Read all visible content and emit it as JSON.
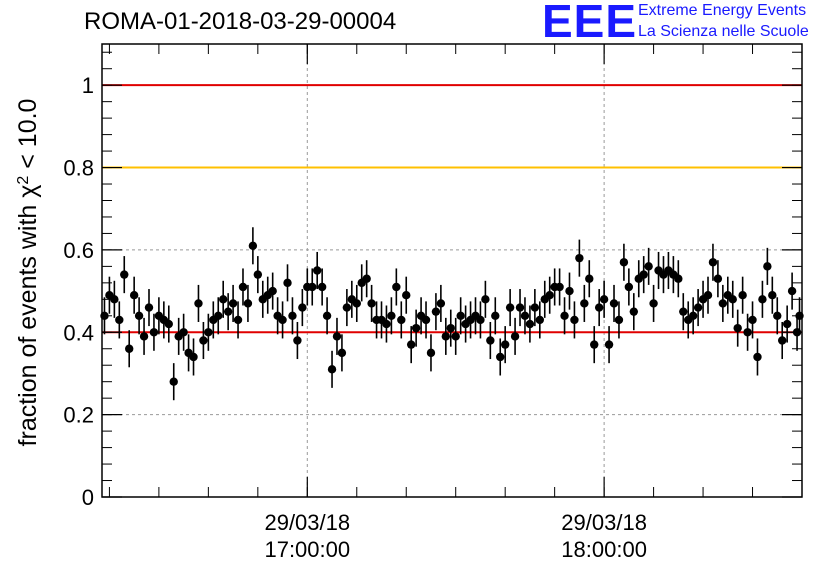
{
  "title": "ROMA-01-2018-03-29-00004",
  "logo": {
    "mark": "EEE",
    "line1": "Extreme Energy Events",
    "line2": "La Scienza nelle Scuole",
    "color": "#1a1aff"
  },
  "chart_data": {
    "type": "scatter",
    "title": "ROMA-01-2018-03-29-00004",
    "xlabel": "",
    "ylabel_prefix": "fraction of events with ",
    "ylabel_symbol": "χ",
    "ylabel_sup": "2",
    "ylabel_suffix": " < 10.0",
    "ylim": [
      0,
      1.1
    ],
    "yticks": [
      0,
      0.2,
      0.4,
      0.6,
      0.8,
      1
    ],
    "ytick_labels": [
      "0",
      "0.2",
      "0.4",
      "0.6",
      "0.8",
      "1"
    ],
    "xlim": [
      "16:18:30",
      "18:40:00"
    ],
    "xticks": [
      {
        "time": "17:00:00",
        "label_date": "29/03/18",
        "label_time": "17:00:00"
      },
      {
        "time": "18:00:00",
        "label_date": "29/03/18",
        "label_time": "18:00:00"
      }
    ],
    "grid": true,
    "reference_lines": [
      {
        "y": 1.0,
        "color": "#e00000"
      },
      {
        "y": 0.8,
        "color": "#ffc000"
      },
      {
        "y": 0.4,
        "color": "#e00000"
      }
    ],
    "series": [
      {
        "marker_color": "#000000",
        "error": 0.045,
        "points": [
          {
            "t": "16:19:00",
            "y": 0.44
          },
          {
            "t": "16:20:00",
            "y": 0.49
          },
          {
            "t": "16:21:00",
            "y": 0.48
          },
          {
            "t": "16:22:00",
            "y": 0.43
          },
          {
            "t": "16:23:00",
            "y": 0.54
          },
          {
            "t": "16:24:00",
            "y": 0.36
          },
          {
            "t": "16:25:00",
            "y": 0.49
          },
          {
            "t": "16:26:00",
            "y": 0.44
          },
          {
            "t": "16:27:00",
            "y": 0.39
          },
          {
            "t": "16:28:00",
            "y": 0.46
          },
          {
            "t": "16:29:00",
            "y": 0.4
          },
          {
            "t": "16:30:00",
            "y": 0.44
          },
          {
            "t": "16:31:00",
            "y": 0.43
          },
          {
            "t": "16:32:00",
            "y": 0.42
          },
          {
            "t": "16:33:00",
            "y": 0.28
          },
          {
            "t": "16:34:00",
            "y": 0.39
          },
          {
            "t": "16:35:00",
            "y": 0.4
          },
          {
            "t": "16:36:00",
            "y": 0.35
          },
          {
            "t": "16:37:00",
            "y": 0.34
          },
          {
            "t": "16:38:00",
            "y": 0.47
          },
          {
            "t": "16:39:00",
            "y": 0.38
          },
          {
            "t": "16:40:00",
            "y": 0.4
          },
          {
            "t": "16:41:00",
            "y": 0.43
          },
          {
            "t": "16:42:00",
            "y": 0.44
          },
          {
            "t": "16:43:00",
            "y": 0.48
          },
          {
            "t": "16:44:00",
            "y": 0.45
          },
          {
            "t": "16:45:00",
            "y": 0.47
          },
          {
            "t": "16:46:00",
            "y": 0.43
          },
          {
            "t": "16:47:00",
            "y": 0.51
          },
          {
            "t": "16:48:00",
            "y": 0.47
          },
          {
            "t": "16:49:00",
            "y": 0.61
          },
          {
            "t": "16:50:00",
            "y": 0.54
          },
          {
            "t": "16:51:00",
            "y": 0.48
          },
          {
            "t": "16:52:00",
            "y": 0.49
          },
          {
            "t": "16:53:00",
            "y": 0.5
          },
          {
            "t": "16:54:00",
            "y": 0.44
          },
          {
            "t": "16:55:00",
            "y": 0.43
          },
          {
            "t": "16:56:00",
            "y": 0.52
          },
          {
            "t": "16:57:00",
            "y": 0.44
          },
          {
            "t": "16:58:00",
            "y": 0.38
          },
          {
            "t": "16:59:00",
            "y": 0.46
          },
          {
            "t": "17:00:00",
            "y": 0.51
          },
          {
            "t": "17:01:00",
            "y": 0.51
          },
          {
            "t": "17:02:00",
            "y": 0.55
          },
          {
            "t": "17:03:00",
            "y": 0.51
          },
          {
            "t": "17:04:00",
            "y": 0.44
          },
          {
            "t": "17:05:00",
            "y": 0.31
          },
          {
            "t": "17:06:00",
            "y": 0.39
          },
          {
            "t": "17:07:00",
            "y": 0.35
          },
          {
            "t": "17:08:00",
            "y": 0.46
          },
          {
            "t": "17:09:00",
            "y": 0.48
          },
          {
            "t": "17:10:00",
            "y": 0.47
          },
          {
            "t": "17:11:00",
            "y": 0.52
          },
          {
            "t": "17:12:00",
            "y": 0.53
          },
          {
            "t": "17:13:00",
            "y": 0.47
          },
          {
            "t": "17:14:00",
            "y": 0.43
          },
          {
            "t": "17:15:00",
            "y": 0.43
          },
          {
            "t": "17:16:00",
            "y": 0.42
          },
          {
            "t": "17:17:00",
            "y": 0.44
          },
          {
            "t": "17:18:00",
            "y": 0.51
          },
          {
            "t": "17:19:00",
            "y": 0.43
          },
          {
            "t": "17:20:00",
            "y": 0.49
          },
          {
            "t": "17:21:00",
            "y": 0.37
          },
          {
            "t": "17:22:00",
            "y": 0.41
          },
          {
            "t": "17:23:00",
            "y": 0.44
          },
          {
            "t": "17:24:00",
            "y": 0.43
          },
          {
            "t": "17:25:00",
            "y": 0.35
          },
          {
            "t": "17:26:00",
            "y": 0.45
          },
          {
            "t": "17:27:00",
            "y": 0.47
          },
          {
            "t": "17:28:00",
            "y": 0.39
          },
          {
            "t": "17:29:00",
            "y": 0.41
          },
          {
            "t": "17:30:00",
            "y": 0.39
          },
          {
            "t": "17:31:00",
            "y": 0.44
          },
          {
            "t": "17:32:00",
            "y": 0.42
          },
          {
            "t": "17:33:00",
            "y": 0.43
          },
          {
            "t": "17:34:00",
            "y": 0.44
          },
          {
            "t": "17:35:00",
            "y": 0.43
          },
          {
            "t": "17:36:00",
            "y": 0.48
          },
          {
            "t": "17:37:00",
            "y": 0.38
          },
          {
            "t": "17:38:00",
            "y": 0.44
          },
          {
            "t": "17:39:00",
            "y": 0.34
          },
          {
            "t": "17:40:00",
            "y": 0.37
          },
          {
            "t": "17:41:00",
            "y": 0.46
          },
          {
            "t": "17:42:00",
            "y": 0.39
          },
          {
            "t": "17:43:00",
            "y": 0.46
          },
          {
            "t": "17:44:00",
            "y": 0.44
          },
          {
            "t": "17:45:00",
            "y": 0.42
          },
          {
            "t": "17:46:00",
            "y": 0.46
          },
          {
            "t": "17:47:00",
            "y": 0.43
          },
          {
            "t": "17:48:00",
            "y": 0.48
          },
          {
            "t": "17:49:00",
            "y": 0.49
          },
          {
            "t": "17:50:00",
            "y": 0.51
          },
          {
            "t": "17:51:00",
            "y": 0.51
          },
          {
            "t": "17:52:00",
            "y": 0.44
          },
          {
            "t": "17:53:00",
            "y": 0.5
          },
          {
            "t": "17:54:00",
            "y": 0.43
          },
          {
            "t": "17:55:00",
            "y": 0.58
          },
          {
            "t": "17:56:00",
            "y": 0.47
          },
          {
            "t": "17:57:00",
            "y": 0.53
          },
          {
            "t": "17:58:00",
            "y": 0.37
          },
          {
            "t": "17:59:00",
            "y": 0.46
          },
          {
            "t": "18:00:00",
            "y": 0.48
          },
          {
            "t": "18:01:00",
            "y": 0.37
          },
          {
            "t": "18:02:00",
            "y": 0.47
          },
          {
            "t": "18:03:00",
            "y": 0.43
          },
          {
            "t": "18:04:00",
            "y": 0.57
          },
          {
            "t": "18:05:00",
            "y": 0.51
          },
          {
            "t": "18:06:00",
            "y": 0.45
          },
          {
            "t": "18:07:00",
            "y": 0.53
          },
          {
            "t": "18:08:00",
            "y": 0.54
          },
          {
            "t": "18:09:00",
            "y": 0.56
          },
          {
            "t": "18:10:00",
            "y": 0.47
          },
          {
            "t": "18:11:00",
            "y": 0.55
          },
          {
            "t": "18:12:00",
            "y": 0.54
          },
          {
            "t": "18:13:00",
            "y": 0.55
          },
          {
            "t": "18:14:00",
            "y": 0.54
          },
          {
            "t": "18:15:00",
            "y": 0.53
          },
          {
            "t": "18:16:00",
            "y": 0.45
          },
          {
            "t": "18:17:00",
            "y": 0.43
          },
          {
            "t": "18:18:00",
            "y": 0.44
          },
          {
            "t": "18:19:00",
            "y": 0.46
          },
          {
            "t": "18:20:00",
            "y": 0.48
          },
          {
            "t": "18:21:00",
            "y": 0.49
          },
          {
            "t": "18:22:00",
            "y": 0.57
          },
          {
            "t": "18:23:00",
            "y": 0.53
          },
          {
            "t": "18:24:00",
            "y": 0.47
          },
          {
            "t": "18:25:00",
            "y": 0.49
          },
          {
            "t": "18:26:00",
            "y": 0.48
          },
          {
            "t": "18:27:00",
            "y": 0.41
          },
          {
            "t": "18:28:00",
            "y": 0.49
          },
          {
            "t": "18:29:00",
            "y": 0.4
          },
          {
            "t": "18:30:00",
            "y": 0.43
          },
          {
            "t": "18:31:00",
            "y": 0.34
          },
          {
            "t": "18:32:00",
            "y": 0.48
          },
          {
            "t": "18:33:00",
            "y": 0.56
          },
          {
            "t": "18:34:00",
            "y": 0.49
          },
          {
            "t": "18:35:00",
            "y": 0.44
          },
          {
            "t": "18:36:00",
            "y": 0.38
          },
          {
            "t": "18:37:00",
            "y": 0.42
          },
          {
            "t": "18:38:00",
            "y": 0.5
          },
          {
            "t": "18:39:00",
            "y": 0.4
          },
          {
            "t": "18:39:30",
            "y": 0.44
          }
        ]
      }
    ]
  }
}
